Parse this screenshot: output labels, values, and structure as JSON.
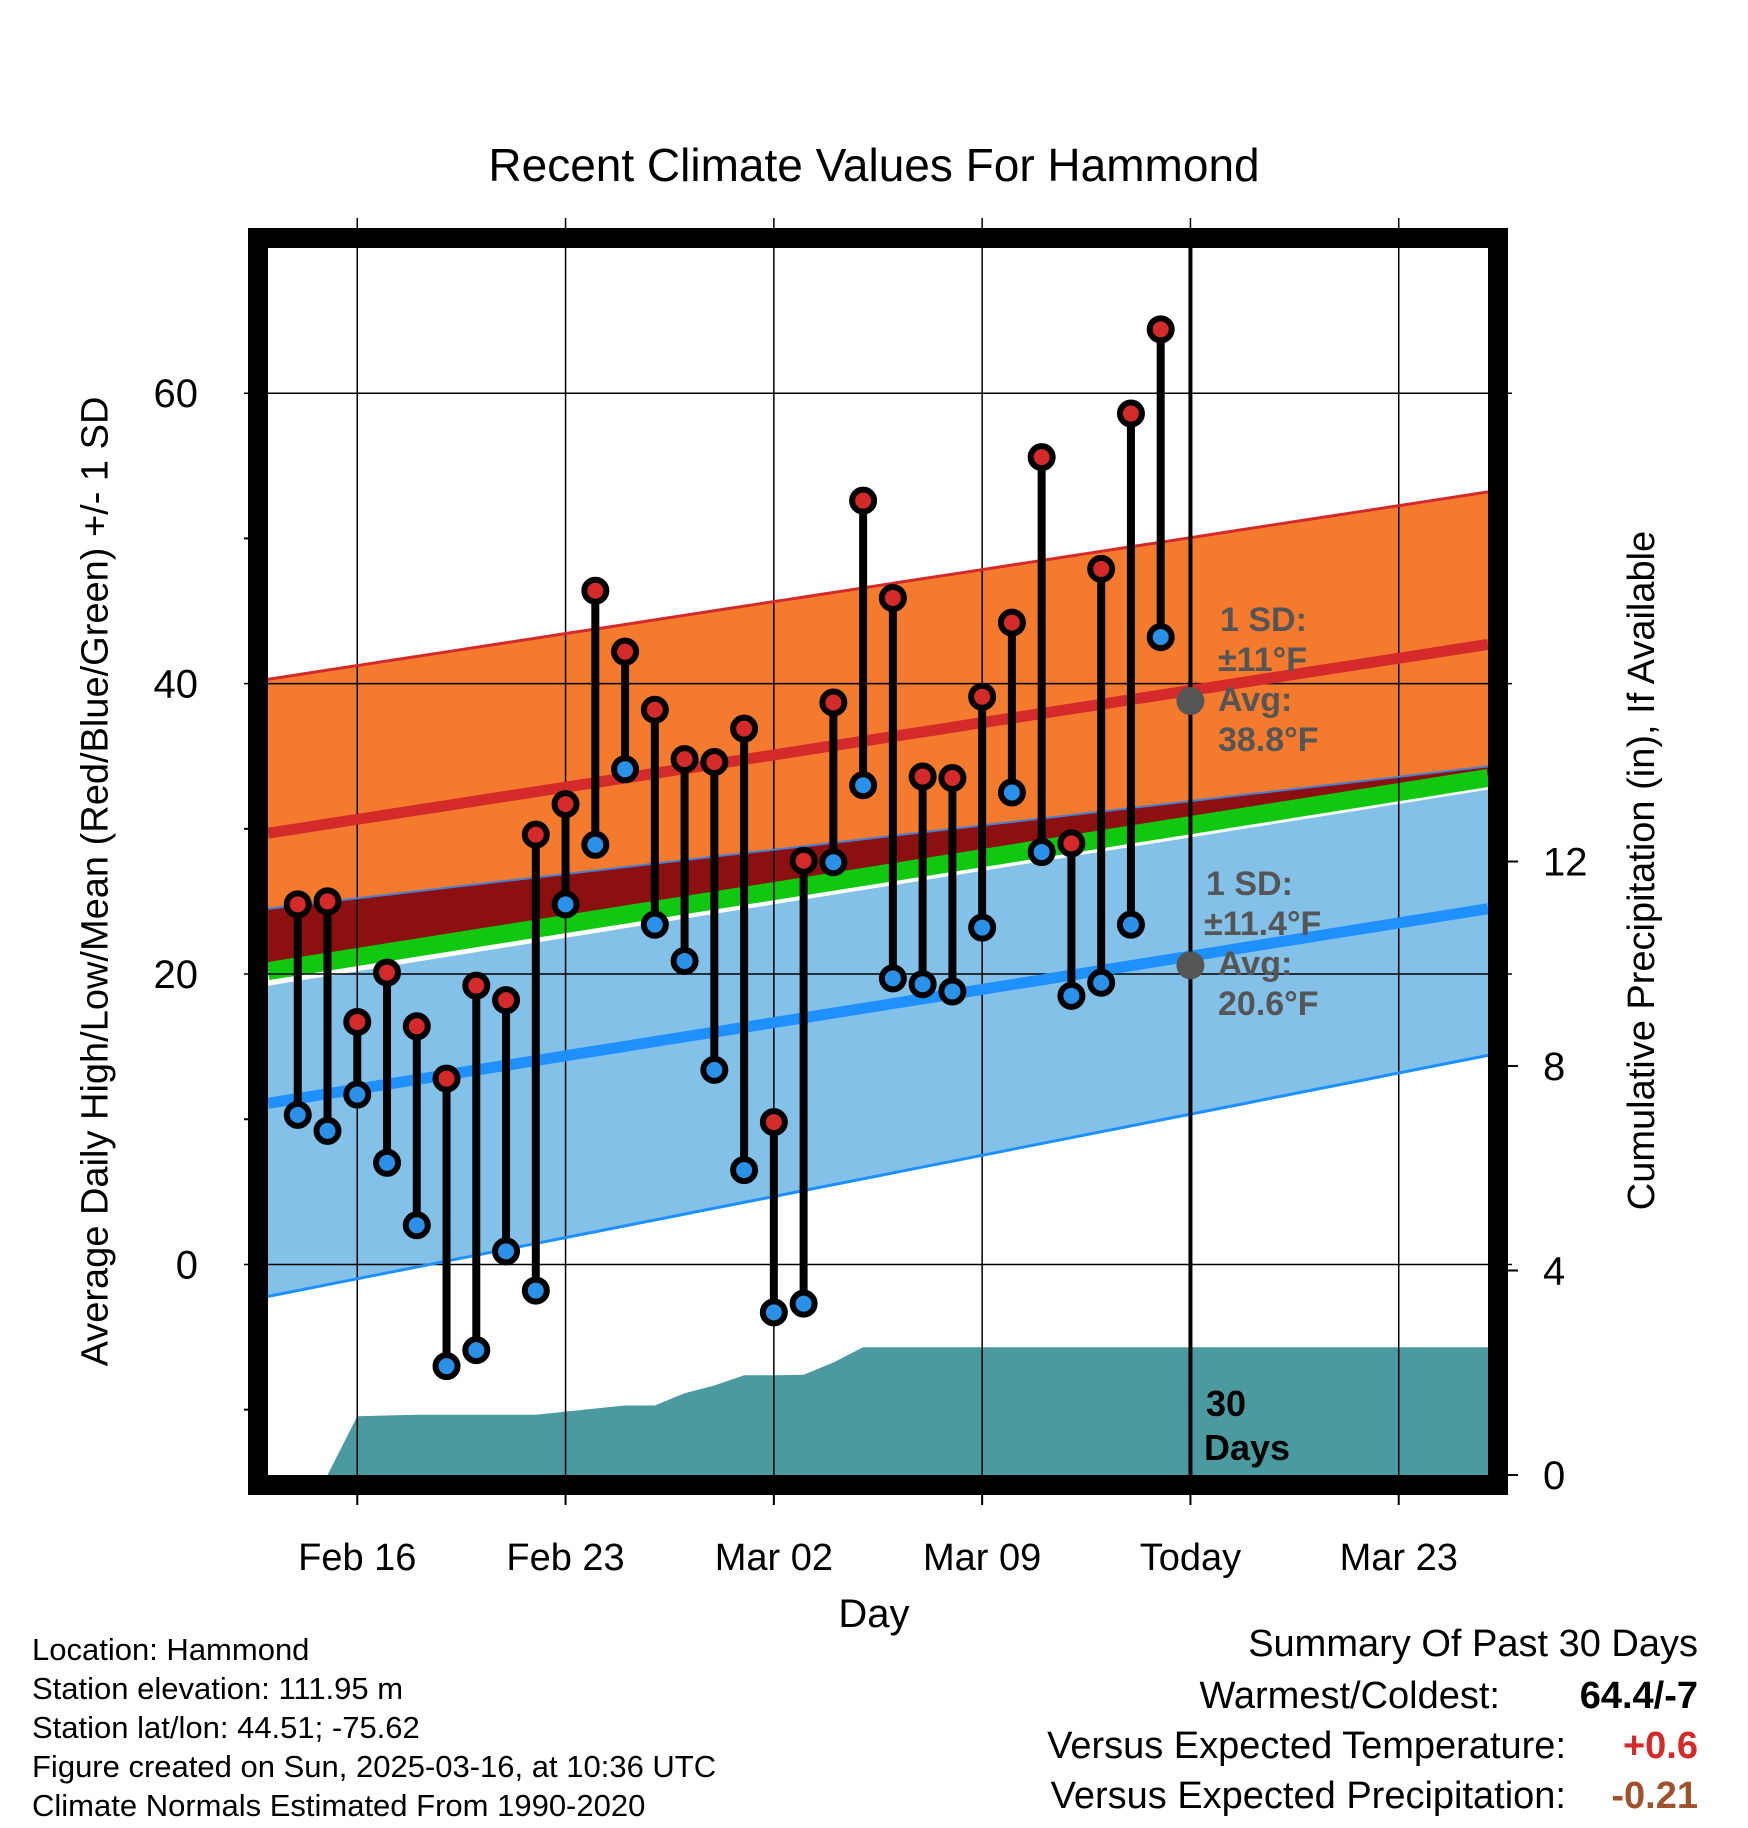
{
  "chart_data": {
    "type": "line",
    "title": "Recent Climate Values For Hammond",
    "xlabel": "Day",
    "ylabel": "Average Daily High/Low/Mean (Red/Blue/Green) +/- 1 SD",
    "y2label": "Cumulative Precipitation (in), If Available",
    "ylim": [
      -14.5,
      70
    ],
    "y2lim": [
      0,
      24
    ],
    "xlim": [
      "2025-02-13",
      "2025-03-26"
    ],
    "x_ticks": [
      "Feb 16",
      "Feb 23",
      "Mar 02",
      "Mar 09",
      "Today",
      "Mar 23"
    ],
    "y_ticks": [
      0,
      20,
      40,
      60
    ],
    "y2_ticks": [
      0,
      4,
      8,
      12
    ],
    "grid": true,
    "series": [
      {
        "name": "High",
        "color": "#d42a2a",
        "x": [
          "2025-02-14",
          "2025-02-15",
          "2025-02-16",
          "2025-02-17",
          "2025-02-18",
          "2025-02-19",
          "2025-02-20",
          "2025-02-21",
          "2025-02-22",
          "2025-02-23",
          "2025-02-24",
          "2025-02-25",
          "2025-02-26",
          "2025-02-27",
          "2025-02-28",
          "2025-03-01",
          "2025-03-02",
          "2025-03-03",
          "2025-03-04",
          "2025-03-05",
          "2025-03-06",
          "2025-03-07",
          "2025-03-08",
          "2025-03-09",
          "2025-03-10",
          "2025-03-11",
          "2025-03-12",
          "2025-03-13",
          "2025-03-14",
          "2025-03-15"
        ],
        "values": [
          24.8,
          25.0,
          16.7,
          20.1,
          16.4,
          12.8,
          19.2,
          18.2,
          29.6,
          31.7,
          46.4,
          42.2,
          38.2,
          34.8,
          34.6,
          36.9,
          9.8,
          27.8,
          38.7,
          52.6,
          45.9,
          33.6,
          33.5,
          39.1,
          44.2,
          55.6,
          29.0,
          47.9,
          58.6,
          64.4
        ]
      },
      {
        "name": "Low",
        "color": "#2a90e8",
        "x": [
          "2025-02-14",
          "2025-02-15",
          "2025-02-16",
          "2025-02-17",
          "2025-02-18",
          "2025-02-19",
          "2025-02-20",
          "2025-02-21",
          "2025-02-22",
          "2025-02-23",
          "2025-02-24",
          "2025-02-25",
          "2025-02-26",
          "2025-02-27",
          "2025-02-28",
          "2025-03-01",
          "2025-03-02",
          "2025-03-03",
          "2025-03-04",
          "2025-03-05",
          "2025-03-06",
          "2025-03-07",
          "2025-03-08",
          "2025-03-09",
          "2025-03-10",
          "2025-03-11",
          "2025-03-12",
          "2025-03-13",
          "2025-03-14",
          "2025-03-15"
        ],
        "values": [
          10.3,
          9.2,
          11.7,
          7.0,
          2.7,
          -7.0,
          -5.9,
          0.9,
          -1.8,
          24.8,
          28.9,
          34.1,
          23.4,
          20.9,
          13.4,
          6.5,
          -3.3,
          -2.7,
          27.7,
          33.0,
          19.7,
          19.3,
          18.8,
          23.2,
          32.5,
          28.4,
          18.5,
          19.4,
          23.4,
          43.2
        ]
      },
      {
        "name": "Normal High",
        "color": "#d42a2a",
        "x": [
          "2025-02-13",
          "2025-03-26"
        ],
        "values": [
          29.7,
          42.7
        ]
      },
      {
        "name": "Normal High +1 SD",
        "x": [
          "2025-02-13",
          "2025-03-26"
        ],
        "values": [
          40.3,
          53.2
        ]
      },
      {
        "name": "Normal High -1 SD",
        "x": [
          "2025-02-13",
          "2025-03-26"
        ],
        "values": [
          24.5,
          34.3
        ]
      },
      {
        "name": "Normal Mean",
        "color": "#10c810",
        "x": [
          "2025-02-13",
          "2025-03-26"
        ],
        "values": [
          20.2,
          33.5
        ]
      },
      {
        "name": "Normal Low",
        "color": "#1e90ff",
        "x": [
          "2025-02-13",
          "2025-03-26"
        ],
        "values": [
          11.1,
          24.5
        ]
      },
      {
        "name": "Normal Low +1 SD",
        "x": [
          "2025-02-13",
          "2025-03-26"
        ],
        "values": [
          19.2,
          32.7
        ]
      },
      {
        "name": "Normal Low -1 SD",
        "x": [
          "2025-02-13",
          "2025-03-26"
        ],
        "values": [
          -2.2,
          14.4
        ]
      },
      {
        "name": "Cumulative Precipitation",
        "color": "#4a9aa0",
        "x": [
          "2025-02-13",
          "2025-02-14",
          "2025-02-15",
          "2025-02-16",
          "2025-02-18",
          "2025-02-22",
          "2025-02-24",
          "2025-02-25",
          "2025-02-26",
          "2025-02-27",
          "2025-02-28",
          "2025-03-01",
          "2025-03-02",
          "2025-03-03",
          "2025-03-04",
          "2025-03-05",
          "2025-03-06",
          "2025-03-26"
        ],
        "values": [
          0.0,
          0.0,
          0.0,
          1.15,
          1.18,
          1.18,
          1.3,
          1.36,
          1.36,
          1.6,
          1.75,
          1.95,
          1.95,
          1.96,
          2.2,
          2.5,
          2.5,
          2.5
        ]
      }
    ],
    "annotations": {
      "high_sd": "1 SD:",
      "high_sd_val": "±11°F",
      "high_avg": "Avg:",
      "high_avg_val": "38.8°F",
      "low_sd": "1 SD:",
      "low_sd_val": "±11.4°F",
      "low_avg": "Avg:",
      "low_avg_val": "20.6°F",
      "days_line1": "30",
      "days_line2": "Days"
    },
    "today": "2025-03-16"
  },
  "info": {
    "location": "Location: Hammond",
    "elevation": "Station elevation: 111.95 m",
    "latlon": "Station lat/lon: 44.51; -75.62",
    "created": "Figure created on Sun, 2025-03-16, at 10:36 UTC",
    "normals": "Climate Normals Estimated From 1990-2020"
  },
  "summary": {
    "heading": "Summary Of Past 30 Days",
    "warmest_label": "Warmest/Coldest:",
    "warmest_value": "64.4/-7",
    "temp_label": "Versus Expected Temperature:",
    "temp_value": "+0.6",
    "temp_color": "#d42a2a",
    "precip_label": "Versus Expected Precipitation:",
    "precip_value": "-0.21",
    "precip_color": "#a0522d"
  }
}
